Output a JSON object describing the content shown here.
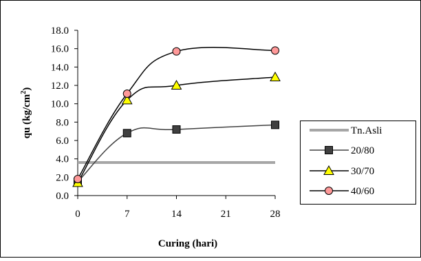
{
  "chart_data": {
    "type": "line",
    "title": "",
    "xlabel": "Curing (hari)",
    "ylabel_main": "qu (kg/cm",
    "ylabel_sup": "2",
    "ylabel_close": ")",
    "x": [
      0,
      7,
      14,
      21,
      28
    ],
    "x_ticks": [
      "0",
      "7",
      "14",
      "21",
      "28"
    ],
    "y_ticks": [
      "0.0",
      "2.0",
      "4.0",
      "6.0",
      "8.0",
      "10.0",
      "12.0",
      "14.0",
      "16.0",
      "18.0"
    ],
    "xlim": [
      0,
      28
    ],
    "ylim": [
      0,
      18
    ],
    "grid": false,
    "legend_position": "right",
    "series": [
      {
        "name": "Tn.Asli",
        "x": [
          0,
          28
        ],
        "values": [
          3.6,
          3.6
        ],
        "color": "#a6a6a6",
        "marker": "none"
      },
      {
        "name": "20/80",
        "x": [
          0,
          7,
          14,
          28
        ],
        "values": [
          1.5,
          6.8,
          7.2,
          7.7
        ],
        "color": "#404040",
        "marker": "square",
        "marker_fill": "#404040"
      },
      {
        "name": "30/70",
        "x": [
          0,
          7,
          14,
          28
        ],
        "values": [
          1.4,
          10.4,
          12.0,
          12.9
        ],
        "color": "#000000",
        "marker": "triangle",
        "marker_fill": "#ffff00"
      },
      {
        "name": "40/60",
        "x": [
          0,
          7,
          14,
          28
        ],
        "values": [
          1.8,
          11.1,
          15.7,
          15.8
        ],
        "color": "#000000",
        "marker": "circle",
        "marker_fill": "#ff9999"
      }
    ]
  }
}
